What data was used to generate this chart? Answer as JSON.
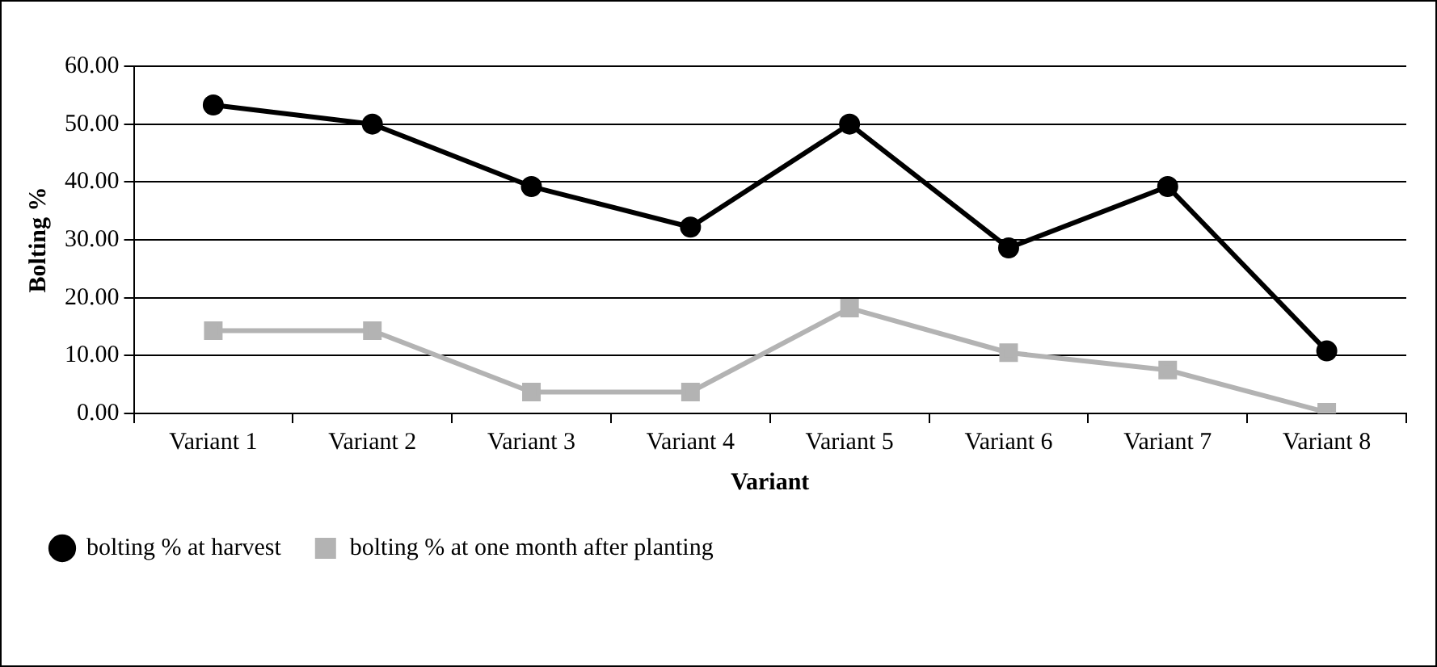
{
  "chart_data": {
    "type": "line",
    "xlabel": "Variant",
    "ylabel": "Bolting %",
    "categories": [
      "Variant 1",
      "Variant 2",
      "Variant 3",
      "Variant 4",
      "Variant 5",
      "Variant 6",
      "Variant 7",
      "Variant 8"
    ],
    "series": [
      {
        "name": "bolting % at harvest",
        "color": "#000000",
        "marker": "circle",
        "values": [
          53.3,
          50.0,
          39.2,
          32.2,
          50.0,
          28.6,
          39.2,
          10.8
        ]
      },
      {
        "name": "bolting % at one month after planting",
        "color": "#b3b3b3",
        "marker": "square",
        "values": [
          14.3,
          14.3,
          3.7,
          3.7,
          18.2,
          10.5,
          7.5,
          0.2
        ]
      }
    ],
    "ylim": [
      0,
      60
    ],
    "yticks": [
      {
        "value": 0,
        "label": "0.00"
      },
      {
        "value": 10,
        "label": "10.00"
      },
      {
        "value": 20,
        "label": "20.00"
      },
      {
        "value": 30,
        "label": "30.00"
      },
      {
        "value": 40,
        "label": "40.00"
      },
      {
        "value": 50,
        "label": "50.00"
      },
      {
        "value": 60,
        "label": "60.00"
      }
    ],
    "grid": "y",
    "legend": "bottom",
    "line_style": "solid"
  }
}
